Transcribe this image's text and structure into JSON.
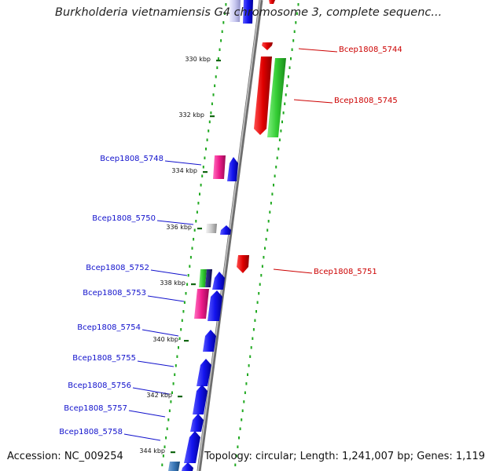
{
  "title": "Burkholderia vietnamiensis G4 chromosome 3, complete sequenc...",
  "accession": "Accession: NC_009254",
  "topology": "Topology: circular; Length: 1,241,007 bp; Genes: 1,119",
  "colors": {
    "forward_label": "#1111cc",
    "reverse_label": "#cc0000",
    "tick_dots": "#22aa22",
    "kbp_tick": "#116611",
    "backbone": "#8a8a8a"
  },
  "kbp_ticks": [
    {
      "label": "330 kbp"
    },
    {
      "label": "332 kbp"
    },
    {
      "label": "334 kbp"
    },
    {
      "label": "336 kbp"
    },
    {
      "label": "338 kbp"
    },
    {
      "label": "340 kbp"
    },
    {
      "label": "342 kbp"
    },
    {
      "label": "344 kbp"
    }
  ],
  "gene_labels": [
    {
      "text": "Bcep1808_5744",
      "strand": "reverse"
    },
    {
      "text": "Bcep1808_5745",
      "strand": "reverse"
    },
    {
      "text": "Bcep1808_5748",
      "strand": "forward"
    },
    {
      "text": "Bcep1808_5750",
      "strand": "forward"
    },
    {
      "text": "Bcep1808_5751",
      "strand": "reverse"
    },
    {
      "text": "Bcep1808_5752",
      "strand": "forward"
    },
    {
      "text": "Bcep1808_5753",
      "strand": "forward"
    },
    {
      "text": "Bcep1808_5754",
      "strand": "forward"
    },
    {
      "text": "Bcep1808_5755",
      "strand": "forward"
    },
    {
      "text": "Bcep1808_5756",
      "strand": "forward"
    },
    {
      "text": "Bcep1808_5757",
      "strand": "forward"
    },
    {
      "text": "Bcep1808_5758",
      "strand": "forward"
    }
  ]
}
